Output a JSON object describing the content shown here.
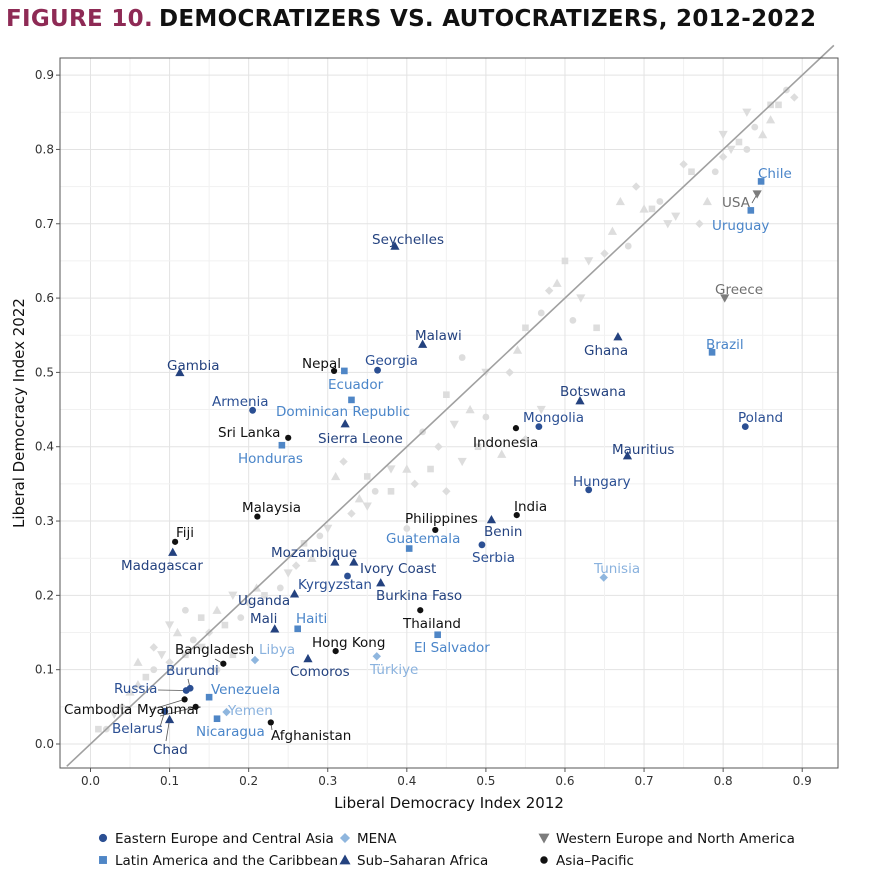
{
  "title": {
    "figure_label": "FIGURE 10.",
    "text": "DEMOCRATIZERS VS. AUTOCRATIZERS, 2012-2022"
  },
  "colors": {
    "eeca": "#2b4f93",
    "lac": "#4f86c6",
    "mena": "#8fb6de",
    "ssa": "#24427f",
    "weu": "#7c7c7c",
    "asia": "#111111",
    "bg_point": "#dddddd",
    "diagonal": "#a0a0a0",
    "label_eeca": "#2b4f93",
    "label_lac": "#4a85c9",
    "label_mena": "#8ab2de",
    "label_ssa": "#24427f",
    "label_weu": "#6f6f6f",
    "label_asia": "#111111"
  },
  "chart_data": {
    "type": "scatter",
    "title": "DEMOCRATIZERS VS. AUTOCRATIZERS, 2012-2022",
    "xlabel": "Liberal Democracy Index 2012",
    "ylabel": "Liberal Democracy Index 2022",
    "xlim": [
      -0.03,
      0.94
    ],
    "ylim": [
      -0.03,
      0.94
    ],
    "x_ticks": [
      "0.0",
      "0.1",
      "0.2",
      "0.3",
      "0.4",
      "0.5",
      "0.6",
      "0.7",
      "0.8",
      "0.9"
    ],
    "y_ticks": [
      "0.0",
      "0.1",
      "0.2",
      "0.3",
      "0.4",
      "0.5",
      "0.6",
      "0.7",
      "0.8",
      "0.9"
    ],
    "grid": true,
    "reference_line": "y = x",
    "legend_position": "bottom",
    "legend": [
      {
        "label": "Eastern Europe and Central Asia",
        "region": "eeca",
        "marker": "circle"
      },
      {
        "label": "MENA",
        "region": "mena",
        "marker": "diamond"
      },
      {
        "label": "Western Europe and North America",
        "region": "weu",
        "marker": "triangle-down"
      },
      {
        "label": "Latin America and the Caribbean",
        "region": "lac",
        "marker": "square"
      },
      {
        "label": "Sub–Saharan Africa",
        "region": "ssa",
        "marker": "triangle"
      },
      {
        "label": "Asia–Pacific",
        "region": "asia",
        "marker": "circle-small"
      }
    ],
    "labeled_points": [
      {
        "name": "Chile",
        "region": "lac",
        "x": 0.848,
        "y": 0.757
      },
      {
        "name": "USA",
        "region": "weu",
        "x": 0.843,
        "y": 0.74
      },
      {
        "name": "Uruguay",
        "region": "lac",
        "x": 0.835,
        "y": 0.718
      },
      {
        "name": "Seychelles",
        "region": "ssa",
        "x": 0.385,
        "y": 0.67
      },
      {
        "name": "Greece",
        "region": "weu",
        "x": 0.802,
        "y": 0.6
      },
      {
        "name": "Malawi",
        "region": "ssa",
        "x": 0.42,
        "y": 0.538
      },
      {
        "name": "Ghana",
        "region": "ssa",
        "x": 0.667,
        "y": 0.548
      },
      {
        "name": "Brazil",
        "region": "lac",
        "x": 0.786,
        "y": 0.527
      },
      {
        "name": "Gambia",
        "region": "ssa",
        "x": 0.113,
        "y": 0.5
      },
      {
        "name": "Nepal",
        "region": "asia",
        "x": 0.308,
        "y": 0.502
      },
      {
        "name": "Georgia",
        "region": "eeca",
        "x": 0.363,
        "y": 0.503
      },
      {
        "name": "Ecuador",
        "region": "lac",
        "x": 0.321,
        "y": 0.502
      },
      {
        "name": "Botswana",
        "region": "ssa",
        "x": 0.619,
        "y": 0.462
      },
      {
        "name": "Armenia",
        "region": "eeca",
        "x": 0.205,
        "y": 0.449
      },
      {
        "name": "Dominican Republic",
        "region": "lac",
        "x": 0.33,
        "y": 0.463
      },
      {
        "name": "Poland",
        "region": "eeca",
        "x": 0.828,
        "y": 0.427
      },
      {
        "name": "Mongolia",
        "region": "eeca",
        "x": 0.567,
        "y": 0.427
      },
      {
        "name": "Indonesia",
        "region": "asia",
        "x": 0.538,
        "y": 0.425
      },
      {
        "name": "Sierra Leone",
        "region": "ssa",
        "x": 0.322,
        "y": 0.431
      },
      {
        "name": "Sri Lanka",
        "region": "asia",
        "x": 0.25,
        "y": 0.412
      },
      {
        "name": "Honduras",
        "region": "lac",
        "x": 0.242,
        "y": 0.402
      },
      {
        "name": "Mauritius",
        "region": "ssa",
        "x": 0.679,
        "y": 0.388
      },
      {
        "name": "Hungary",
        "region": "eeca",
        "x": 0.63,
        "y": 0.342
      },
      {
        "name": "India",
        "region": "asia",
        "x": 0.539,
        "y": 0.308
      },
      {
        "name": "Malaysia",
        "region": "asia",
        "x": 0.211,
        "y": 0.306
      },
      {
        "name": "Philippines",
        "region": "asia",
        "x": 0.436,
        "y": 0.288
      },
      {
        "name": "Benin",
        "region": "ssa",
        "x": 0.507,
        "y": 0.302
      },
      {
        "name": "Fiji",
        "region": "asia",
        "x": 0.107,
        "y": 0.272
      },
      {
        "name": "Guatemala",
        "region": "lac",
        "x": 0.403,
        "y": 0.263
      },
      {
        "name": "Serbia",
        "region": "eeca",
        "x": 0.495,
        "y": 0.268
      },
      {
        "name": "Madagascar",
        "region": "ssa",
        "x": 0.104,
        "y": 0.258
      },
      {
        "name": "Mozambique",
        "region": "ssa",
        "x": 0.309,
        "y": 0.245
      },
      {
        "name": "Ivory Coast",
        "region": "ssa",
        "x": 0.333,
        "y": 0.245
      },
      {
        "name": "Tunisia",
        "region": "mena",
        "x": 0.649,
        "y": 0.224
      },
      {
        "name": "Kyrgyzstan",
        "region": "eeca",
        "x": 0.325,
        "y": 0.226
      },
      {
        "name": "Burkina Faso",
        "region": "ssa",
        "x": 0.367,
        "y": 0.217
      },
      {
        "name": "Uganda",
        "region": "ssa",
        "x": 0.258,
        "y": 0.202
      },
      {
        "name": "Thailand",
        "region": "asia",
        "x": 0.417,
        "y": 0.18
      },
      {
        "name": "Mali",
        "region": "ssa",
        "x": 0.233,
        "y": 0.155
      },
      {
        "name": "Haiti",
        "region": "lac",
        "x": 0.262,
        "y": 0.155
      },
      {
        "name": "El Salvador",
        "region": "lac",
        "x": 0.439,
        "y": 0.147
      },
      {
        "name": "Hong Kong",
        "region": "asia",
        "x": 0.31,
        "y": 0.125
      },
      {
        "name": "Bangladesh",
        "region": "asia",
        "x": 0.168,
        "y": 0.108
      },
      {
        "name": "Libya",
        "region": "mena",
        "x": 0.208,
        "y": 0.113
      },
      {
        "name": "Comoros",
        "region": "ssa",
        "x": 0.275,
        "y": 0.115
      },
      {
        "name": "Türkiye",
        "region": "mena",
        "x": 0.362,
        "y": 0.118
      },
      {
        "name": "Burundi",
        "region": "eeca",
        "x": 0.126,
        "y": 0.075
      },
      {
        "name": "Russia",
        "region": "eeca",
        "x": 0.121,
        "y": 0.072
      },
      {
        "name": "Venezuela",
        "region": "lac",
        "x": 0.15,
        "y": 0.063
      },
      {
        "name": "Cambodia",
        "region": "asia",
        "x": 0.119,
        "y": 0.06
      },
      {
        "name": "Myanmar",
        "region": "asia",
        "x": 0.133,
        "y": 0.05
      },
      {
        "name": "Yemen",
        "region": "mena",
        "x": 0.172,
        "y": 0.043
      },
      {
        "name": "Belarus",
        "region": "eeca",
        "x": 0.094,
        "y": 0.044
      },
      {
        "name": "Nicaragua",
        "region": "lac",
        "x": 0.16,
        "y": 0.034
      },
      {
        "name": "Chad",
        "region": "ssa",
        "x": 0.1,
        "y": 0.033
      },
      {
        "name": "Afghanistan",
        "region": "asia",
        "x": 0.228,
        "y": 0.029
      }
    ],
    "background_points": [
      [
        0.88,
        0.88
      ],
      [
        0.87,
        0.86
      ],
      [
        0.86,
        0.84
      ],
      [
        0.89,
        0.87
      ],
      [
        0.83,
        0.85
      ],
      [
        0.84,
        0.83
      ],
      [
        0.82,
        0.81
      ],
      [
        0.85,
        0.82
      ],
      [
        0.8,
        0.79
      ],
      [
        0.81,
        0.8
      ],
      [
        0.79,
        0.77
      ],
      [
        0.76,
        0.77
      ],
      [
        0.78,
        0.73
      ],
      [
        0.77,
        0.7
      ],
      [
        0.74,
        0.71
      ],
      [
        0.72,
        0.73
      ],
      [
        0.71,
        0.72
      ],
      [
        0.7,
        0.72
      ],
      [
        0.75,
        0.78
      ],
      [
        0.8,
        0.82
      ],
      [
        0.83,
        0.8
      ],
      [
        0.86,
        0.86
      ],
      [
        0.66,
        0.69
      ],
      [
        0.65,
        0.66
      ],
      [
        0.63,
        0.65
      ],
      [
        0.68,
        0.67
      ],
      [
        0.6,
        0.65
      ],
      [
        0.59,
        0.62
      ],
      [
        0.58,
        0.61
      ],
      [
        0.62,
        0.6
      ],
      [
        0.57,
        0.58
      ],
      [
        0.55,
        0.56
      ],
      [
        0.54,
        0.53
      ],
      [
        0.53,
        0.5
      ],
      [
        0.5,
        0.5
      ],
      [
        0.47,
        0.52
      ],
      [
        0.45,
        0.47
      ],
      [
        0.48,
        0.45
      ],
      [
        0.44,
        0.4
      ],
      [
        0.46,
        0.43
      ],
      [
        0.42,
        0.42
      ],
      [
        0.43,
        0.37
      ],
      [
        0.4,
        0.37
      ],
      [
        0.41,
        0.35
      ],
      [
        0.38,
        0.37
      ],
      [
        0.36,
        0.34
      ],
      [
        0.35,
        0.36
      ],
      [
        0.34,
        0.33
      ],
      [
        0.33,
        0.31
      ],
      [
        0.3,
        0.29
      ],
      [
        0.29,
        0.28
      ],
      [
        0.27,
        0.27
      ],
      [
        0.28,
        0.25
      ],
      [
        0.26,
        0.24
      ],
      [
        0.25,
        0.23
      ],
      [
        0.24,
        0.21
      ],
      [
        0.22,
        0.2
      ],
      [
        0.21,
        0.21
      ],
      [
        0.2,
        0.19
      ],
      [
        0.18,
        0.2
      ],
      [
        0.19,
        0.17
      ],
      [
        0.17,
        0.16
      ],
      [
        0.16,
        0.18
      ],
      [
        0.15,
        0.15
      ],
      [
        0.14,
        0.13
      ],
      [
        0.13,
        0.14
      ],
      [
        0.12,
        0.12
      ],
      [
        0.11,
        0.15
      ],
      [
        0.1,
        0.11
      ],
      [
        0.09,
        0.12
      ],
      [
        0.08,
        0.1
      ],
      [
        0.07,
        0.09
      ],
      [
        0.05,
        0.07
      ],
      [
        0.04,
        0.05
      ],
      [
        0.03,
        0.04
      ],
      [
        0.02,
        0.02
      ],
      [
        0.01,
        0.02
      ],
      [
        0.06,
        0.08
      ],
      [
        0.55,
        0.41
      ],
      [
        0.57,
        0.45
      ],
      [
        0.5,
        0.44
      ],
      [
        0.49,
        0.4
      ],
      [
        0.52,
        0.39
      ],
      [
        0.45,
        0.34
      ],
      [
        0.47,
        0.38
      ],
      [
        0.4,
        0.29
      ],
      [
        0.38,
        0.34
      ],
      [
        0.31,
        0.36
      ],
      [
        0.32,
        0.38
      ],
      [
        0.35,
        0.32
      ],
      [
        0.12,
        0.18
      ],
      [
        0.14,
        0.17
      ],
      [
        0.06,
        0.11
      ],
      [
        0.08,
        0.13
      ],
      [
        0.1,
        0.16
      ],
      [
        0.16,
        0.1
      ],
      [
        0.18,
        0.12
      ],
      [
        0.67,
        0.73
      ],
      [
        0.69,
        0.75
      ],
      [
        0.73,
        0.7
      ],
      [
        0.61,
        0.57
      ],
      [
        0.64,
        0.56
      ]
    ]
  }
}
